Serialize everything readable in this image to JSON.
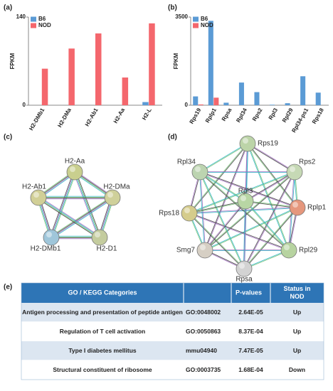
{
  "panel_labels": [
    "(a)",
    "(b)",
    "(c)",
    "(d)",
    "(e)"
  ],
  "chart_data": [
    {
      "type": "bar",
      "y_label": "FPKM",
      "categories": [
        "H2-DMb1",
        "H2-DMa",
        "H2-Ab1",
        "H2-Aa",
        "H2-L"
      ],
      "series": [
        {
          "name": "B6",
          "color": "#5b9bd5",
          "values": [
            0,
            0,
            0,
            0,
            5
          ]
        },
        {
          "name": "NOD",
          "color": "#f4676d",
          "values": [
            58,
            90,
            114,
            44,
            130
          ]
        }
      ],
      "ylim": [
        0,
        140
      ],
      "yticks": [
        0,
        140
      ],
      "legend": "upper left"
    },
    {
      "type": "bar",
      "y_label": "FPKM",
      "categories": [
        "Rps19",
        "Rplp1",
        "Rpsa",
        "Rpl34",
        "Rps2",
        "Rpl3",
        "Rpl29",
        "Rpl34-ps1",
        "Rps18"
      ],
      "series": [
        {
          "name": "B6",
          "color": "#5b9bd5",
          "values": [
            350,
            3350,
            100,
            900,
            520,
            20,
            80,
            1150,
            500
          ]
        },
        {
          "name": "NOD",
          "color": "#f4676d",
          "values": [
            30,
            300,
            0,
            0,
            0,
            0,
            0,
            0,
            0
          ]
        }
      ],
      "ylim": [
        0,
        3500
      ],
      "yticks": [
        0,
        3500
      ],
      "legend": "upper left"
    }
  ],
  "networks": [
    {
      "nodes": [
        "H2-Aa",
        "H2-DMa",
        "H2-D1",
        "H2-DMb1",
        "H2-Ab1"
      ]
    },
    {
      "nodes": [
        "Rps19",
        "Rps2",
        "Rplp1",
        "Rpl29",
        "Rpsa",
        "Smg7",
        "Rps18",
        "Rpl34",
        "Rpl3"
      ]
    }
  ],
  "table": {
    "header": {
      "category": "GO / KEGG Categories",
      "pvalue": "P-values",
      "status": "Status in NOD"
    },
    "rows": [
      [
        "Antigen processing and presentation of peptide antigen",
        "GO:0048002",
        "2.64E-05",
        "Up"
      ],
      [
        "Regulation of T cell activation",
        "GO:0050863",
        "8.37E-04",
        "Up"
      ],
      [
        "Type I diabetes mellitus",
        "mmu04940",
        "7.47E-05",
        "Up"
      ],
      [
        "Structural constituent of ribosome",
        "GO:0003735",
        "1.68E-04",
        "Down"
      ]
    ]
  }
}
